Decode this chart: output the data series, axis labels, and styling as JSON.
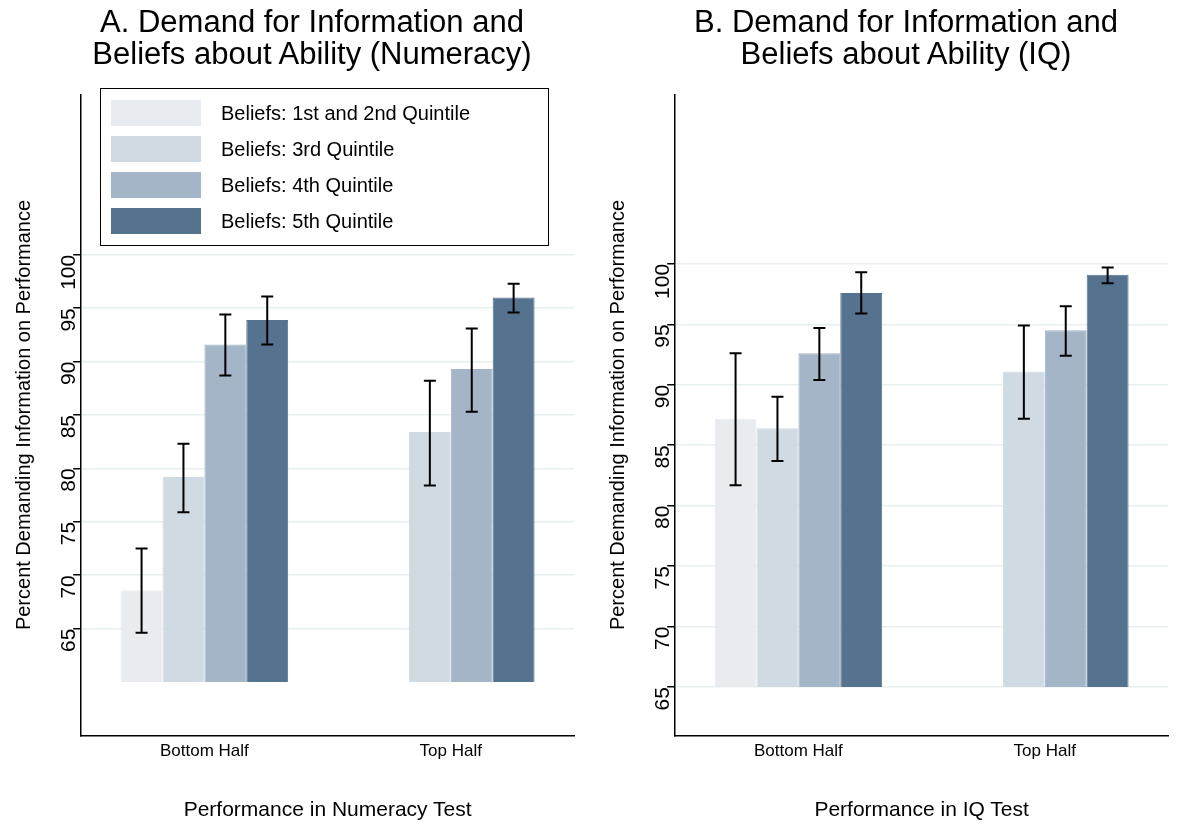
{
  "chart_data": [
    {
      "type": "bar",
      "title": "A. Demand for Information and Beliefs about Ability (Numeracy)",
      "xlabel": "Performance in Numeracy Test",
      "ylabel": "Percent Demanding Information on Performance",
      "categories": [
        "Bottom Half",
        "Top Half"
      ],
      "series": [
        {
          "name": "Beliefs: 1st and 2nd Quintile",
          "color": "#e8ebf0",
          "base": [
            60,
            null
          ],
          "values": [
            8.6,
            null
          ],
          "errors": [
            [
              64.6,
              72.5
            ],
            null
          ]
        },
        {
          "name": "Beliefs: 3rd Quintile",
          "color": "#d0dae3",
          "base": [
            60,
            60
          ],
          "values": [
            19.2,
            23.4
          ],
          "errors": [
            [
              75.9,
              82.3
            ],
            [
              78.4,
              88.2
            ]
          ]
        },
        {
          "name": "Beliefs: 4th Quintile",
          "color": "#a3b5c6",
          "base": [
            60,
            60
          ],
          "values": [
            31.6,
            29.3
          ],
          "errors": [
            [
              88.7,
              94.4
            ],
            [
              85.3,
              93.1
            ]
          ]
        },
        {
          "name": "Beliefs: 5th Quintile",
          "color": "#55738f",
          "base": [
            60,
            60
          ],
          "values": [
            33.9,
            36.0
          ],
          "errors": [
            [
              91.6,
              96.1
            ],
            [
              94.6,
              97.3
            ]
          ]
        }
      ],
      "ylim": [
        55,
        115
      ],
      "yticks": [
        65,
        70,
        75,
        80,
        85,
        90,
        95,
        100
      ],
      "grid": "y",
      "legend": "top"
    },
    {
      "type": "bar",
      "title": "B. Demand for Information and Beliefs about Ability (IQ)",
      "xlabel": "Performance in IQ Test",
      "ylabel": "Percent Demanding Information on Performance",
      "categories": [
        "Bottom Half",
        "Top Half"
      ],
      "series": [
        {
          "color": "#e8ebf0",
          "base": [
            65,
            null
          ],
          "values": [
            22.2,
            null
          ],
          "errors": [
            [
              81.7,
              92.6
            ],
            null
          ]
        },
        {
          "color": "#d0dae3",
          "base": [
            65,
            65
          ],
          "values": [
            21.4,
            26.1
          ],
          "errors": [
            [
              83.7,
              89.0
            ],
            [
              87.2,
              94.9
            ]
          ]
        },
        {
          "color": "#a3b5c6",
          "base": [
            65,
            65
          ],
          "values": [
            27.6,
            29.5
          ],
          "errors": [
            [
              90.4,
              94.7
            ],
            [
              92.4,
              96.5
            ]
          ]
        },
        {
          "color": "#55738f",
          "base": [
            65,
            65
          ],
          "values": [
            32.6,
            34.1
          ],
          "errors": [
            [
              95.9,
              99.3
            ],
            [
              98.4,
              99.7
            ]
          ]
        }
      ],
      "ylim": [
        61,
        114
      ],
      "yticks": [
        65,
        70,
        75,
        80,
        85,
        90,
        95,
        100
      ],
      "grid": "y",
      "legend": false
    }
  ]
}
